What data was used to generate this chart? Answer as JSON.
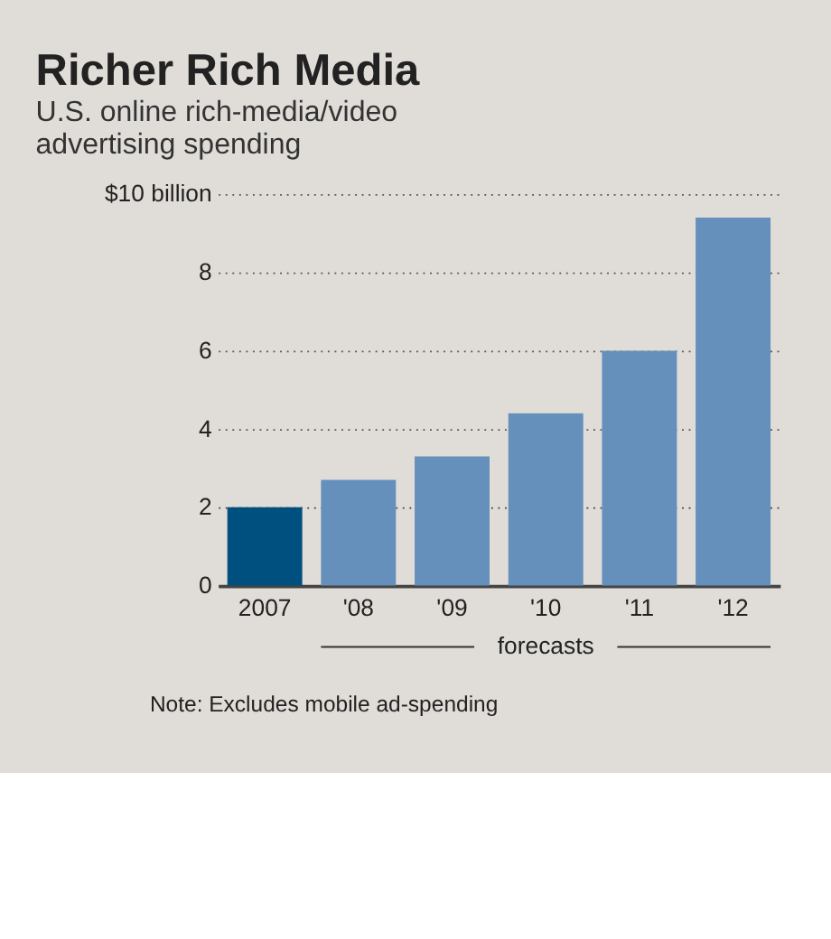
{
  "chart_data": {
    "type": "bar",
    "title": "Richer Rich Media",
    "subtitle": "U.S. online rich-media/video advertising spending",
    "categories": [
      "2007",
      "'08",
      "'09",
      "'10",
      "'11",
      "'12"
    ],
    "values": [
      2.0,
      2.7,
      3.3,
      4.4,
      6.0,
      9.4
    ],
    "colors": [
      "#00507f",
      "#6590bb",
      "#6590bb",
      "#6590bb",
      "#6590bb",
      "#6590bb"
    ],
    "ylim": [
      0,
      10
    ],
    "yticks": [
      0,
      2,
      4,
      6,
      8,
      {
        "value": 10,
        "label": "$10 billion"
      }
    ],
    "grid": "y",
    "annotations": [
      "forecasts",
      "Note: Excludes mobile ad-spending"
    ]
  }
}
